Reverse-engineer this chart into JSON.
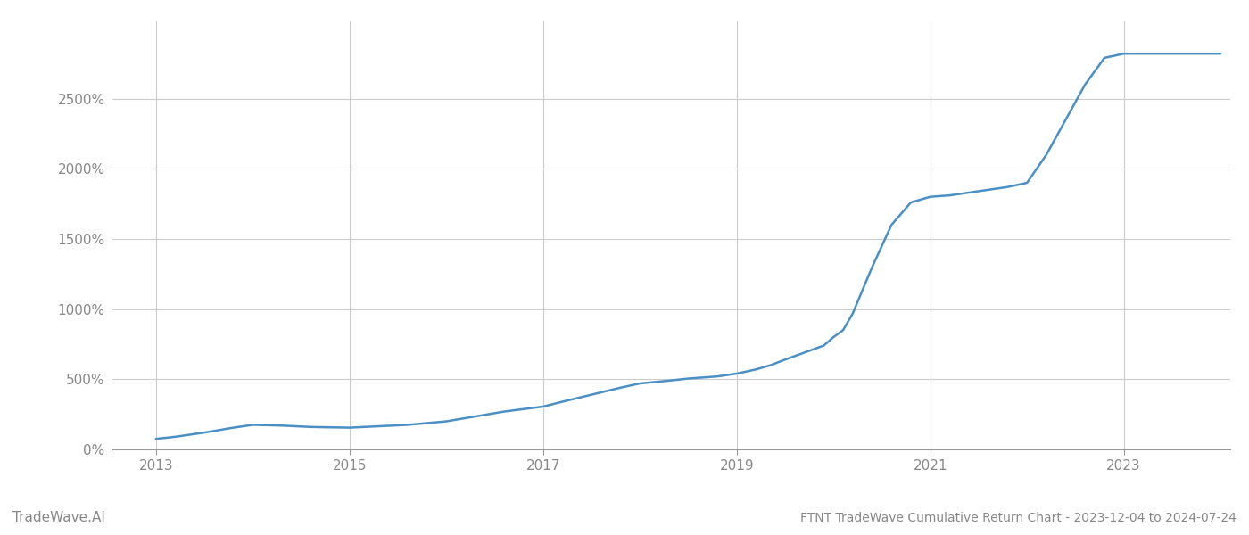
{
  "title": "FTNT TradeWave Cumulative Return Chart - 2023-12-04 to 2024-07-24",
  "watermark": "TradeWave.AI",
  "line_color": "#4a90c4",
  "line_width": 1.8,
  "background_color": "#ffffff",
  "grid_color": "#cccccc",
  "x_years": [
    2013.0,
    2013.2,
    2013.5,
    2013.8,
    2014.0,
    2014.3,
    2014.6,
    2015.0,
    2015.3,
    2015.6,
    2016.0,
    2016.3,
    2016.6,
    2017.0,
    2017.2,
    2017.5,
    2017.8,
    2018.0,
    2018.3,
    2018.5,
    2018.8,
    2019.0,
    2019.1,
    2019.2,
    2019.35,
    2019.5,
    2019.7,
    2019.9,
    2020.0,
    2020.1,
    2020.2,
    2020.4,
    2020.6,
    2020.8,
    2021.0,
    2021.2,
    2021.4,
    2021.6,
    2021.8,
    2022.0,
    2022.2,
    2022.4,
    2022.6,
    2022.8,
    2023.0,
    2023.5,
    2024.0
  ],
  "y_values": [
    75,
    90,
    120,
    155,
    175,
    170,
    160,
    155,
    165,
    175,
    200,
    235,
    270,
    305,
    340,
    390,
    440,
    470,
    490,
    505,
    520,
    540,
    555,
    570,
    600,
    640,
    690,
    740,
    800,
    850,
    970,
    1300,
    1600,
    1760,
    1800,
    1810,
    1830,
    1850,
    1870,
    1900,
    2100,
    2350,
    2600,
    2790,
    2820,
    2820,
    2820
  ],
  "yticks": [
    0,
    500,
    1000,
    1500,
    2000,
    2500
  ],
  "ytick_labels": [
    "0%",
    "500%",
    "1000%",
    "1500%",
    "2000%",
    "2500%"
  ],
  "xticks": [
    2013,
    2015,
    2017,
    2019,
    2021,
    2023
  ],
  "ylim": [
    0,
    3050
  ],
  "xlim": [
    2012.55,
    2024.1
  ],
  "axis_color": "#999999",
  "tick_color": "#888888",
  "title_fontsize": 10,
  "watermark_fontsize": 11
}
